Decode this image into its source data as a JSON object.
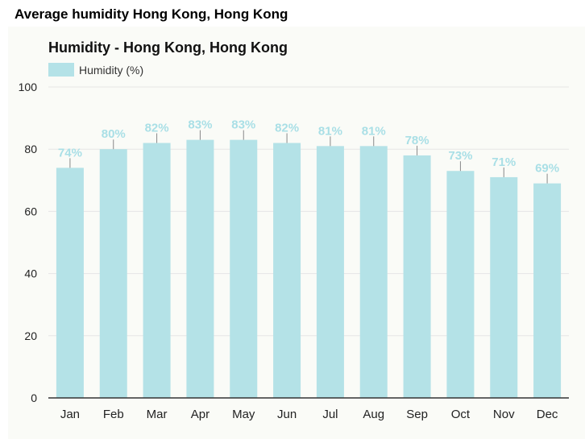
{
  "page": {
    "title": "Average humidity Hong Kong, Hong Kong"
  },
  "colors": {
    "bar": "#b4e2e7",
    "label": "#a9dfe6",
    "grid": "#e6e6e6",
    "axis": "#333333"
  },
  "chart_data": {
    "type": "bar",
    "title": "Humidity - Hong Kong, Hong Kong",
    "legend": {
      "label": "Humidity (%)",
      "position": "top-left"
    },
    "categories": [
      "Jan",
      "Feb",
      "Mar",
      "Apr",
      "May",
      "Jun",
      "Jul",
      "Aug",
      "Sep",
      "Oct",
      "Nov",
      "Dec"
    ],
    "series": [
      {
        "name": "Humidity (%)",
        "values": [
          74,
          80,
          82,
          83,
          83,
          82,
          81,
          81,
          78,
          73,
          71,
          69
        ]
      }
    ],
    "data_labels": [
      "74%",
      "80%",
      "82%",
      "83%",
      "83%",
      "82%",
      "81%",
      "81%",
      "78%",
      "73%",
      "71%",
      "69%"
    ],
    "ylim": [
      0,
      100
    ],
    "yticks": [
      0,
      20,
      40,
      60,
      80,
      100
    ],
    "grid": true
  }
}
